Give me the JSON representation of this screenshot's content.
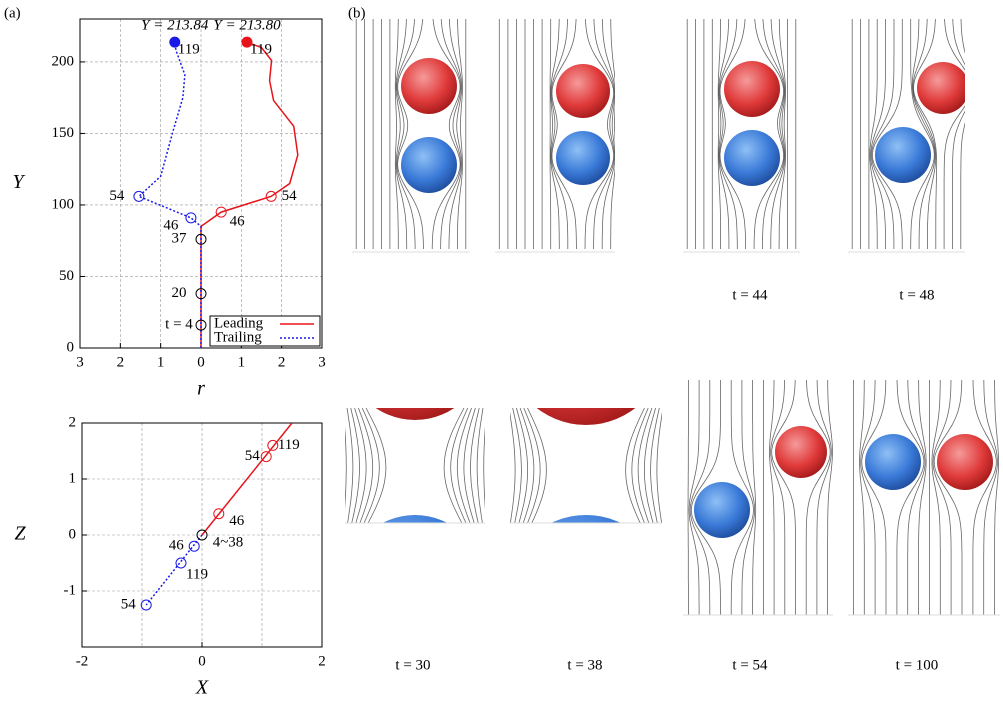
{
  "chart_data": [
    {
      "type": "line",
      "panel_label": "(a)",
      "xlabel": "r",
      "ylabel": "Y",
      "xlim": [
        -3,
        3
      ],
      "ylim": [
        0,
        230
      ],
      "xticks": [
        {
          "value": -3,
          "label": "3"
        },
        {
          "value": -2,
          "label": "2"
        },
        {
          "value": -1,
          "label": "1"
        },
        0,
        1,
        2,
        3
      ],
      "yticks": [
        0,
        50,
        100,
        150,
        200
      ],
      "grid": true,
      "legend": "lower right",
      "series": [
        {
          "name": "Leading",
          "color": "#e8141b",
          "dash": false,
          "end_label": "Y = 213.80",
          "x": [
            0,
            0,
            0.5,
            1.74,
            2.2,
            2.4,
            2.3,
            1.8,
            1.7,
            1.75,
            1.5,
            1.14
          ],
          "values": [
            0,
            85,
            95,
            106,
            115,
            135,
            155,
            173,
            187,
            201,
            210,
            213.8
          ]
        },
        {
          "name": "Trailing",
          "color": "#1a1ae6",
          "dash": true,
          "end_label": "Y = 213.84",
          "x": [
            0,
            0,
            -0.25,
            -1.54,
            -1.0,
            -0.7,
            -0.45,
            -0.4,
            -0.62,
            -0.65
          ],
          "values": [
            0,
            85,
            91,
            106,
            120,
            151,
            175,
            191,
            208,
            213.8
          ]
        }
      ],
      "markers": [
        {
          "label": "t = 4",
          "x": 0,
          "y": 16,
          "color": "#000"
        },
        {
          "label": "20",
          "x": 0,
          "y": 38,
          "color": "#000"
        },
        {
          "label": "37",
          "x": 0,
          "y": 76,
          "color": "#000"
        },
        {
          "label": "46",
          "x": 0.5,
          "y": 95,
          "color": "#e8141b"
        },
        {
          "label": "54",
          "x": 1.74,
          "y": 106,
          "color": "#e8141b"
        },
        {
          "label": "46",
          "x": -0.25,
          "y": 91,
          "color": "#1a1ae6"
        },
        {
          "label": "54",
          "x": -1.54,
          "y": 106,
          "color": "#1a1ae6"
        },
        {
          "label": "119",
          "x": 1.14,
          "y": 213.8,
          "color": "#e8141b",
          "filled": true
        },
        {
          "label": "119",
          "x": -0.65,
          "y": 213.8,
          "color": "#1a1ae6",
          "filled": true
        }
      ]
    },
    {
      "type": "line",
      "xlabel": "X",
      "ylabel": "Z",
      "xlim": [
        -2,
        2
      ],
      "ylim": [
        -2,
        2
      ],
      "xticks": [
        -2,
        0,
        2
      ],
      "xminor": [
        -1,
        1
      ],
      "yticks": [
        -1,
        0,
        1,
        2
      ],
      "grid": true,
      "series": [
        {
          "name": "Leading",
          "color": "#e8141b",
          "dash": false,
          "x": [
            0,
            1.5
          ],
          "values": [
            0,
            2
          ]
        },
        {
          "name": "Trailing",
          "color": "#1a1ae6",
          "dash": true,
          "x": [
            0,
            -0.93
          ],
          "values": [
            0,
            -1.25
          ]
        }
      ],
      "markers": [
        {
          "label": "4~38",
          "x": 0,
          "y": 0,
          "color": "#000"
        },
        {
          "label": "46",
          "x": 0.28,
          "y": 0.38,
          "color": "#e8141b"
        },
        {
          "label": "54",
          "x": 1.07,
          "y": 1.4,
          "color": "#e8141b"
        },
        {
          "label": "119",
          "x": 1.18,
          "y": 1.6,
          "color": "#e8141b"
        },
        {
          "label": "46",
          "x": -0.13,
          "y": -0.2,
          "color": "#1a1ae6"
        },
        {
          "label": "119",
          "x": -0.35,
          "y": -0.5,
          "color": "#1a1ae6"
        },
        {
          "label": "54",
          "x": -0.93,
          "y": -1.25,
          "color": "#1a1ae6"
        }
      ]
    }
  ],
  "panel_b": {
    "label": "(b)",
    "captions": [
      "t = 44",
      "t = 48",
      "t = 30",
      "t = 38",
      "t = 54",
      "t = 100"
    ]
  }
}
